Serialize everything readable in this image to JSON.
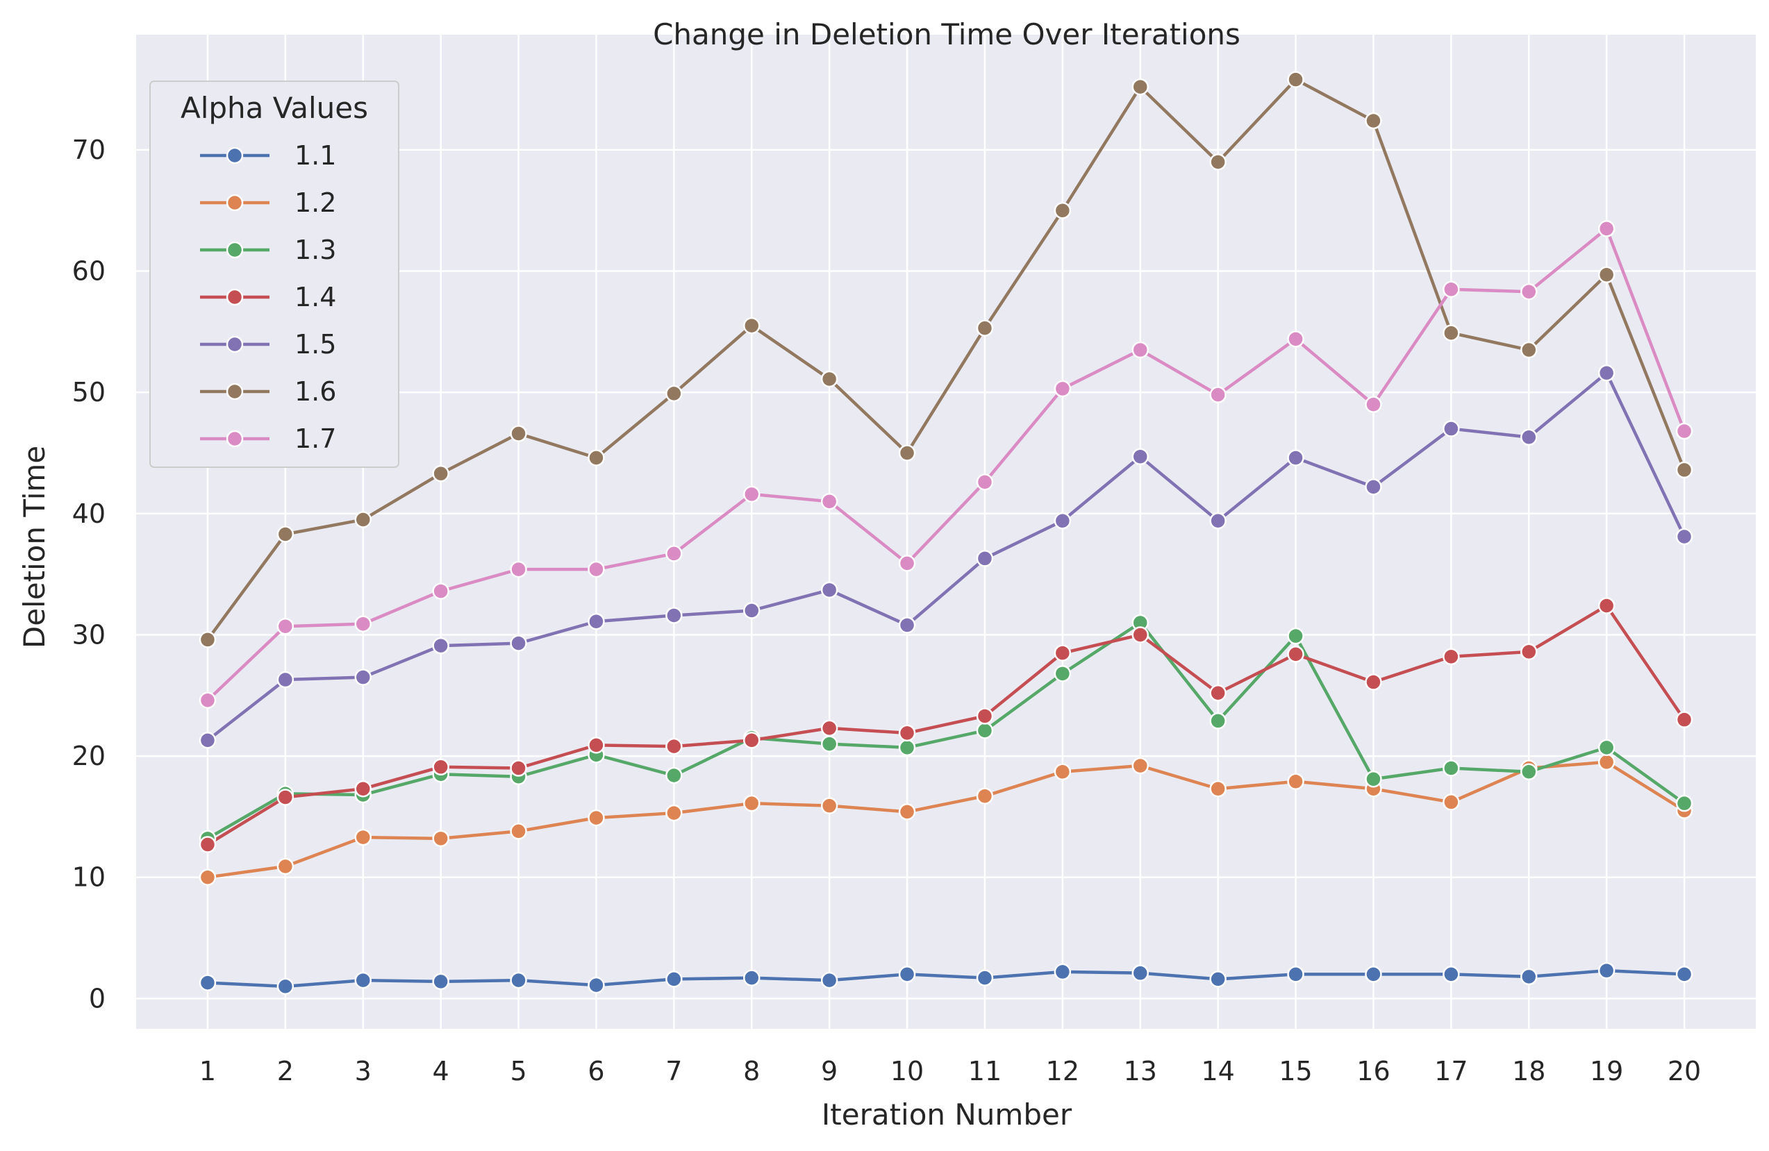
{
  "chart_data": {
    "type": "line",
    "title": "Change in Deletion Time Over Iterations",
    "xlabel": "Iteration Number",
    "ylabel": "Deletion Time",
    "x": [
      1,
      2,
      3,
      4,
      5,
      6,
      7,
      8,
      9,
      10,
      11,
      12,
      13,
      14,
      15,
      16,
      17,
      18,
      19,
      20
    ],
    "x_tick_labels": [
      "1",
      "2",
      "3",
      "4",
      "5",
      "6",
      "7",
      "8",
      "9",
      "10",
      "11",
      "12",
      "13",
      "14",
      "15",
      "16",
      "17",
      "18",
      "19",
      "20"
    ],
    "y_ticks": [
      0,
      10,
      20,
      30,
      40,
      50,
      60,
      70
    ],
    "y_tick_labels": [
      "0",
      "10",
      "20",
      "30",
      "40",
      "50",
      "60",
      "70"
    ],
    "xlim": [
      0.08,
      20.92
    ],
    "ylim": [
      -2.5,
      79.5
    ],
    "grid": true,
    "legend": {
      "title": "Alpha Values",
      "position": "top-left"
    },
    "series": [
      {
        "name": "1.1",
        "color": "#4c72b0",
        "values": [
          1.3,
          1.0,
          1.5,
          1.4,
          1.5,
          1.1,
          1.6,
          1.7,
          1.5,
          2.0,
          1.7,
          2.2,
          2.1,
          1.6,
          2.0,
          2.0,
          2.0,
          1.8,
          2.3,
          2.0
        ]
      },
      {
        "name": "1.2",
        "color": "#dd8452",
        "values": [
          10.0,
          10.9,
          13.3,
          13.2,
          13.8,
          14.9,
          15.3,
          16.1,
          15.9,
          15.4,
          16.7,
          18.7,
          19.2,
          17.3,
          17.9,
          17.3,
          16.2,
          19.0,
          19.5,
          15.5
        ]
      },
      {
        "name": "1.3",
        "color": "#55a868",
        "values": [
          13.2,
          16.9,
          16.8,
          18.5,
          18.3,
          20.1,
          18.4,
          21.5,
          21.0,
          20.7,
          22.1,
          26.8,
          31.0,
          22.9,
          29.9,
          18.1,
          19.0,
          18.7,
          20.7,
          16.1
        ]
      },
      {
        "name": "1.4",
        "color": "#c44e52",
        "values": [
          12.7,
          16.6,
          17.3,
          19.1,
          19.0,
          20.9,
          20.8,
          21.3,
          22.3,
          21.9,
          23.3,
          28.5,
          30.0,
          25.2,
          28.4,
          26.1,
          28.2,
          28.6,
          32.4,
          23.0
        ]
      },
      {
        "name": "1.5",
        "color": "#8172b3",
        "values": [
          21.3,
          26.3,
          26.5,
          29.1,
          29.3,
          31.1,
          31.6,
          32.0,
          33.7,
          30.8,
          36.3,
          39.4,
          44.7,
          39.4,
          44.6,
          42.2,
          47.0,
          46.3,
          51.6,
          38.1
        ]
      },
      {
        "name": "1.6",
        "color": "#937860",
        "values": [
          29.6,
          38.3,
          39.5,
          43.3,
          46.6,
          44.6,
          49.9,
          55.5,
          51.1,
          45.0,
          55.3,
          65.0,
          75.2,
          69.0,
          75.8,
          72.4,
          54.9,
          53.5,
          59.7,
          43.6
        ]
      },
      {
        "name": "1.7",
        "color": "#da8bc3",
        "values": [
          24.6,
          30.7,
          30.9,
          33.6,
          35.4,
          35.4,
          36.7,
          41.6,
          41.0,
          35.9,
          42.6,
          50.3,
          53.5,
          49.8,
          54.4,
          49.0,
          58.5,
          58.3,
          63.5,
          46.8
        ]
      }
    ]
  }
}
